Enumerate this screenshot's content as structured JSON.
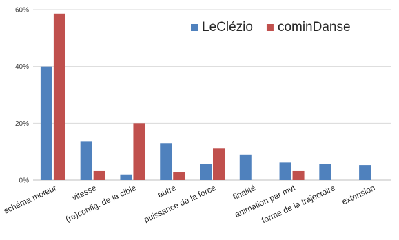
{
  "chart_data": {
    "type": "bar",
    "title": "",
    "xlabel": "",
    "ylabel": "",
    "ylim": [
      0,
      60
    ],
    "yticks": [
      0,
      20,
      40,
      60
    ],
    "ytick_labels": [
      "0%",
      "20%",
      "40%",
      "60%"
    ],
    "grid": true,
    "legend_position": "top-right",
    "categories": [
      "schéma moteur",
      "vitesse",
      "(re)config. de la cible",
      "autre",
      "puissance de la force",
      "finalité",
      "animation par mvt",
      "forme de la trajectoire",
      "extension"
    ],
    "series": [
      {
        "name": "LeClézio",
        "color": "#4f81bd",
        "values": [
          40,
          13.7,
          2,
          13,
          5.6,
          9,
          6.2,
          5.6,
          5.3
        ]
      },
      {
        "name": "cominDanse",
        "color": "#c0504d",
        "values": [
          58.6,
          3.4,
          20,
          2.9,
          11.3,
          0,
          3.4,
          0,
          0
        ]
      }
    ]
  }
}
